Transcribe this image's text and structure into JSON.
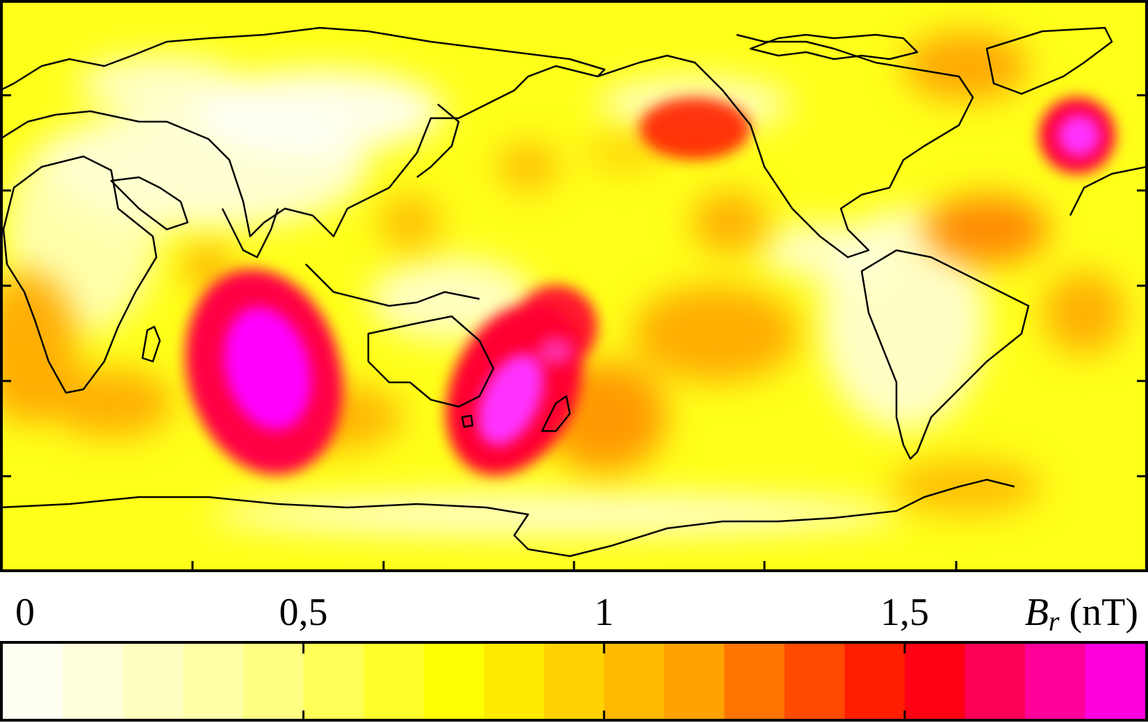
{
  "map": {
    "title": "",
    "projection": "equirectangular",
    "center_longitude": "180",
    "quantity": "radial magnetic field anomaly",
    "colormap_stops": [
      "#ffffff",
      "#ffffa0",
      "#ffff00",
      "#ffa500",
      "#ff0000",
      "#ff00ff"
    ],
    "max_value": 1.9,
    "anomalies": [
      {
        "region": "south-indian-ocean",
        "lon": 75,
        "lat": -27,
        "value": 1.9
      },
      {
        "region": "tasman-sea",
        "lon": 160,
        "lat": -35,
        "value": 1.8
      },
      {
        "region": "north-atlantic",
        "lon": 330,
        "lat": 55,
        "value": 1.7
      },
      {
        "region": "gulf-of-alaska",
        "lon": 215,
        "lat": 57,
        "value": 1.3
      },
      {
        "region": "south-atlantic",
        "lon": 20,
        "lat": -40,
        "value": 0.9
      },
      {
        "region": "central-pacific",
        "lon": 230,
        "lat": -10,
        "value": 0.9
      },
      {
        "region": "mid-atlantic",
        "lon": 315,
        "lat": 17,
        "value": 1.1
      },
      {
        "region": "greenland",
        "lon": 310,
        "lat": 70,
        "value": 0.9
      },
      {
        "region": "antarctic-peninsula",
        "lon": 295,
        "lat": -63,
        "value": 0.8
      }
    ]
  },
  "colorbar": {
    "min": 0,
    "max": 1.9,
    "step": 0.1,
    "ticks": [
      {
        "value": 0,
        "label": "0"
      },
      {
        "value": 0.5,
        "label": "0,5"
      },
      {
        "value": 1,
        "label": "1"
      },
      {
        "value": 1.5,
        "label": "1,5"
      }
    ],
    "unit_symbol": "B",
    "unit_subscript": "r",
    "unit_suffix": "(nT)"
  }
}
